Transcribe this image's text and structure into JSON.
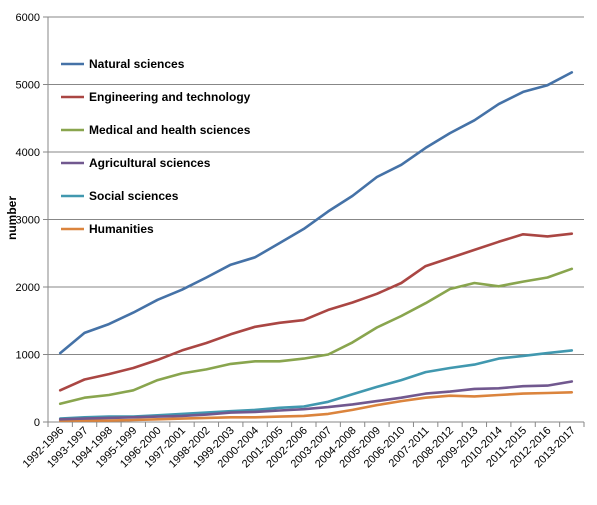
{
  "chart_data": {
    "type": "line",
    "title": "",
    "xlabel": "",
    "ylabel": "number",
    "ylim": [
      0,
      6000
    ],
    "yticks": [
      0,
      1000,
      2000,
      3000,
      4000,
      5000,
      6000
    ],
    "grid": "horizontal",
    "legend_placement": "top-left",
    "x": [
      "1992-1996",
      "1993-1997",
      "1994-1998",
      "1995-1999",
      "1996-2000",
      "1997-2001",
      "1998-2002",
      "1999-2003",
      "2000-2004",
      "2001-2005",
      "2002-2006",
      "2003-2007",
      "2004-2008",
      "2005-2009",
      "2006-2010",
      "2007-2011",
      "2008-2012",
      "2009-2013",
      "2010-2014",
      "2011-2015",
      "2012-2016",
      "2013-2017"
    ],
    "series": [
      {
        "name": "Natural sciences",
        "color": "#4572A7",
        "values": [
          1020,
          1320,
          1450,
          1620,
          1810,
          1960,
          2140,
          2330,
          2440,
          2650,
          2860,
          3120,
          3350,
          3630,
          3810,
          4060,
          4280,
          4470,
          4710,
          4890,
          4990,
          5180
        ]
      },
      {
        "name": "Engineering and technology",
        "color": "#AA4643",
        "values": [
          470,
          630,
          710,
          800,
          920,
          1060,
          1170,
          1300,
          1410,
          1470,
          1510,
          1660,
          1770,
          1900,
          2060,
          2310,
          2430,
          2550,
          2670,
          2780,
          2750,
          2790
        ]
      },
      {
        "name": "Medical and health sciences",
        "color": "#89A54E",
        "values": [
          270,
          360,
          400,
          470,
          620,
          720,
          780,
          860,
          900,
          900,
          940,
          1000,
          1180,
          1400,
          1570,
          1760,
          1970,
          2060,
          2010,
          2080,
          2140,
          2270
        ]
      },
      {
        "name": "Agricultural sciences",
        "color": "#71588F",
        "values": [
          40,
          50,
          60,
          70,
          80,
          90,
          110,
          140,
          150,
          170,
          190,
          220,
          260,
          310,
          360,
          420,
          450,
          490,
          500,
          530,
          540,
          600
        ]
      },
      {
        "name": "Social sciences",
        "color": "#4198AF",
        "values": [
          50,
          70,
          80,
          80,
          100,
          120,
          140,
          160,
          180,
          210,
          230,
          300,
          410,
          520,
          620,
          740,
          800,
          850,
          940,
          980,
          1020,
          1060
        ]
      },
      {
        "name": "Humanities",
        "color": "#DB843D",
        "values": [
          20,
          20,
          20,
          30,
          40,
          50,
          60,
          70,
          70,
          80,
          90,
          120,
          180,
          250,
          310,
          360,
          390,
          380,
          400,
          420,
          430,
          440
        ]
      }
    ]
  }
}
